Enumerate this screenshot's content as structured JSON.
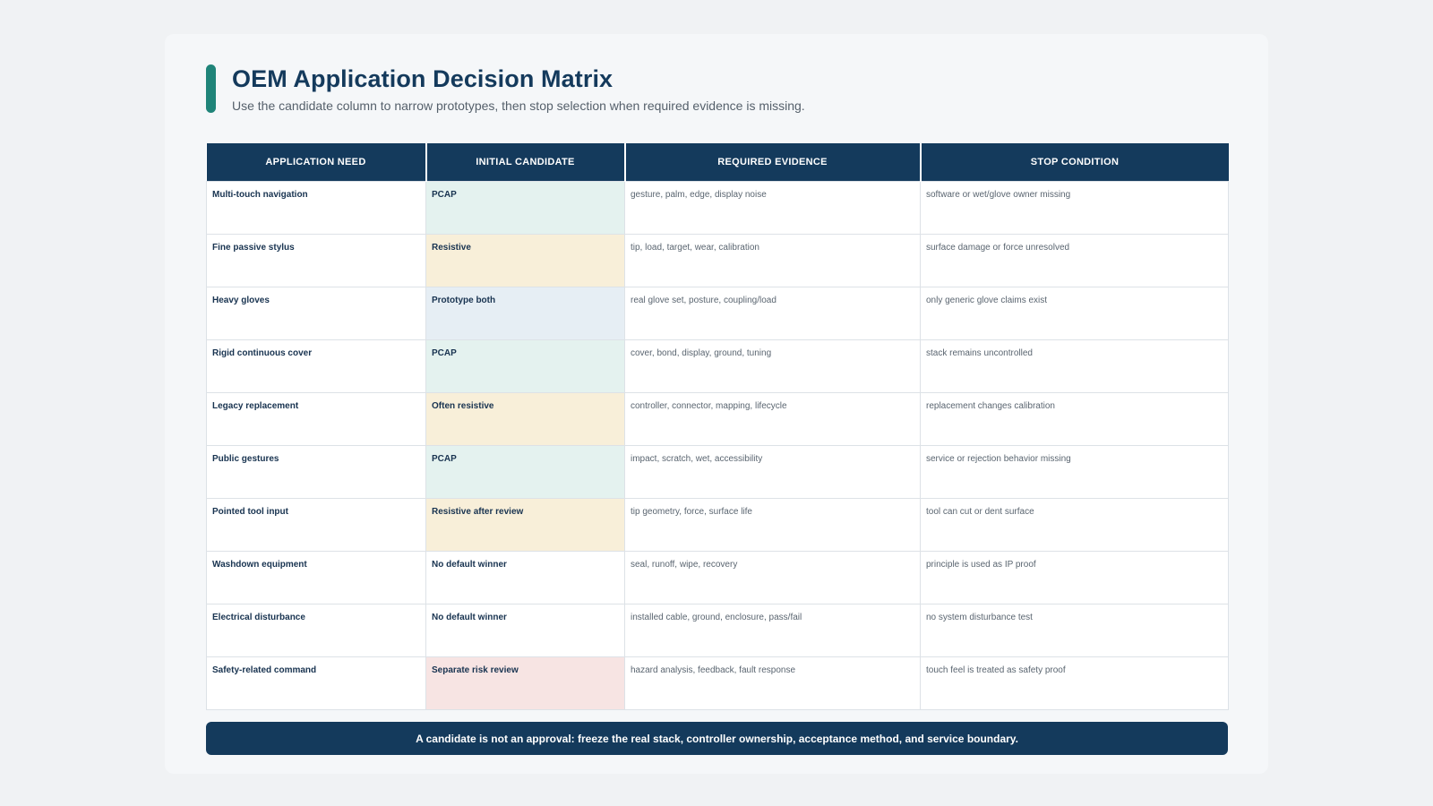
{
  "header": {
    "title": "OEM Application Decision Matrix",
    "subtitle": "Use the candidate column to narrow prototypes, then stop selection when required evidence is missing.",
    "accent_color": "#1f8479"
  },
  "table": {
    "columns": [
      "APPLICATION NEED",
      "INITIAL CANDIDATE",
      "REQUIRED EVIDENCE",
      "STOP CONDITION"
    ],
    "header_color": "#143a5c",
    "rows": [
      {
        "need": "Multi-touch navigation",
        "candidate": "PCAP",
        "evidence": "gesture, palm, edge, display noise",
        "stop": "software or wet/glove owner missing",
        "tone": "pcap"
      },
      {
        "need": "Fine passive stylus",
        "candidate": "Resistive",
        "evidence": "tip, load, target, wear, calibration",
        "stop": "surface damage or force unresolved",
        "tone": "res"
      },
      {
        "need": "Heavy gloves",
        "candidate": "Prototype both",
        "evidence": "real glove set, posture, coupling/load",
        "stop": "only generic glove claims exist",
        "tone": "both"
      },
      {
        "need": "Rigid continuous cover",
        "candidate": "PCAP",
        "evidence": "cover, bond, display, ground, tuning",
        "stop": "stack remains uncontrolled",
        "tone": "pcap"
      },
      {
        "need": "Legacy replacement",
        "candidate": "Often resistive",
        "evidence": "controller, connector, mapping, lifecycle",
        "stop": "replacement changes calibration",
        "tone": "res"
      },
      {
        "need": "Public gestures",
        "candidate": "PCAP",
        "evidence": "impact, scratch, wet, accessibility",
        "stop": "service or rejection behavior missing",
        "tone": "pcap"
      },
      {
        "need": "Pointed tool input",
        "candidate": "Resistive after review",
        "evidence": "tip geometry, force, surface life",
        "stop": "tool can cut or dent surface",
        "tone": "res"
      },
      {
        "need": "Washdown equipment",
        "candidate": "No default winner",
        "evidence": "seal, runoff, wipe, recovery",
        "stop": "principle is used as IP proof",
        "tone": "none"
      },
      {
        "need": "Electrical disturbance",
        "candidate": "No default winner",
        "evidence": "installed cable, ground, enclosure, pass/fail",
        "stop": "no system disturbance test",
        "tone": "none"
      },
      {
        "need": "Safety-related command",
        "candidate": "Separate risk review",
        "evidence": "hazard analysis, feedback, fault response",
        "stop": "touch feel is treated as safety proof",
        "tone": "risk"
      }
    ]
  },
  "footer": {
    "text": "A candidate is not an approval: freeze the real stack, controller ownership, acceptance method, and service boundary."
  }
}
